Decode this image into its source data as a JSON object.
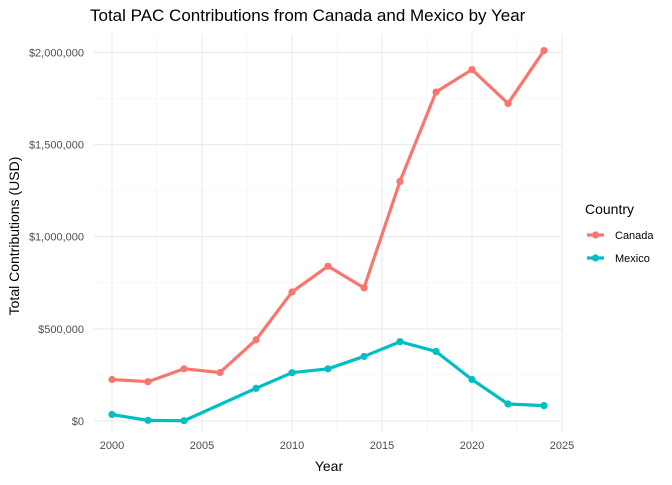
{
  "chart_data": {
    "type": "line",
    "title": "Total PAC Contributions from Canada and Mexico by Year",
    "xlabel": "Year",
    "ylabel": "Total Contributions (USD)",
    "xlim": [
      1999,
      2025
    ],
    "ylim": [
      -60000,
      2100000
    ],
    "x_ticks": [
      2000,
      2005,
      2010,
      2015,
      2020,
      2025
    ],
    "x_tick_labels": [
      "2000",
      "2005",
      "2010",
      "2015",
      "2020",
      "2025"
    ],
    "y_ticks": [
      0,
      500000,
      1000000,
      1500000,
      2000000
    ],
    "y_tick_labels": [
      "$0",
      "$500,000",
      "$1,000,000",
      "$1,500,000",
      "$2,000,000"
    ],
    "grid": true,
    "legend_title": "Country",
    "legend_position": "right",
    "series": [
      {
        "name": "Canada",
        "color": "#F8766D",
        "x": [
          2000,
          2002,
          2004,
          2006,
          2008,
          2010,
          2012,
          2014,
          2016,
          2018,
          2020,
          2022,
          2024
        ],
        "values": [
          225000,
          213000,
          283000,
          263000,
          440000,
          700000,
          840000,
          722000,
          1300000,
          1785000,
          1907000,
          1723000,
          2010000
        ]
      },
      {
        "name": "Mexico",
        "color": "#00BFC4",
        "x": [
          2000,
          2002,
          2004,
          2008,
          2010,
          2012,
          2014,
          2016,
          2018,
          2020,
          2022,
          2024
        ],
        "values": [
          35000,
          3000,
          1000,
          177000,
          262000,
          283000,
          350000,
          430000,
          377000,
          225000,
          92000,
          83000
        ]
      }
    ]
  }
}
